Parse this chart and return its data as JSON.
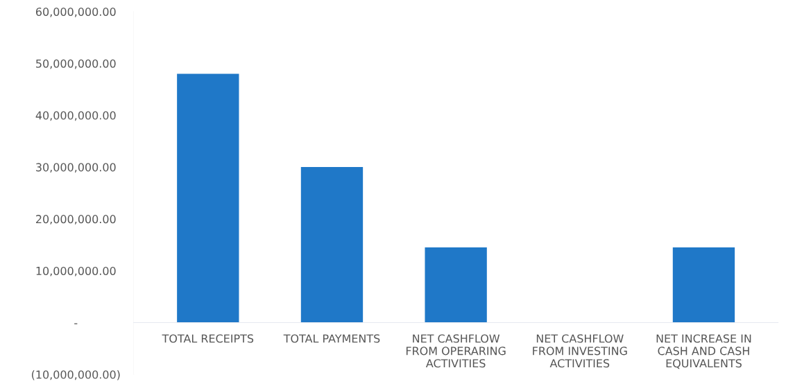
{
  "chart_data": {
    "type": "bar",
    "categories": [
      "TOTAL RECEIPTS",
      "TOTAL PAYMENTS",
      "NET CASHFLOW\nFROM OPERARING\nACTIVITIES",
      "NET CASHFLOW\nFROM INVESTING\nACTIVITIES",
      "NET INCREASE IN\nCASH AND CASH\nEQUIVALENTS"
    ],
    "values": [
      48000000,
      30000000,
      14500000,
      0,
      14500000
    ],
    "color": "#1f78c8",
    "ylim": [
      -10000000,
      60000000
    ],
    "yticks": [
      {
        "value": -10000000,
        "label": "(10,000,000.00)"
      },
      {
        "value": 0,
        "label": "-"
      },
      {
        "value": 10000000,
        "label": "10,000,000.00"
      },
      {
        "value": 20000000,
        "label": "20,000,000.00"
      },
      {
        "value": 30000000,
        "label": "30,000,000.00"
      },
      {
        "value": 40000000,
        "label": "40,000,000.00"
      },
      {
        "value": 50000000,
        "label": "50,000,000.00"
      },
      {
        "value": 60000000,
        "label": "60,000,000.00"
      }
    ],
    "grid": false
  }
}
